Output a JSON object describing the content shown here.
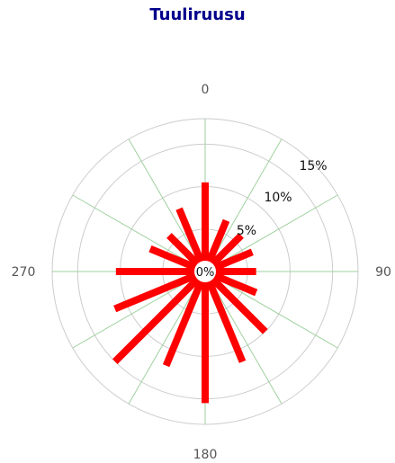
{
  "chart_data": {
    "type": "polar-bar",
    "title": "Tuuliruusu",
    "direction_labels": [
      "0",
      "90",
      "180",
      "270"
    ],
    "ring_labels": [
      "5%",
      "10%",
      "15%"
    ],
    "center_label": "0%",
    "rlim": [
      0,
      18
    ],
    "bar_color": "#ff0000",
    "grid_color": "#cccccc",
    "spoke_color": "#9fd19f",
    "grid": true,
    "directions": [
      0,
      22.5,
      45,
      67.5,
      90,
      112.5,
      135,
      157.5,
      180,
      202.5,
      225,
      247.5,
      270,
      292.5,
      315,
      337.5
    ],
    "values": [
      10.5,
      6.5,
      6.0,
      6.0,
      6.0,
      6.5,
      10.0,
      11.5,
      15.5,
      12.0,
      15.0,
      11.5,
      10.5,
      7.0,
      6.0,
      8.0
    ]
  }
}
